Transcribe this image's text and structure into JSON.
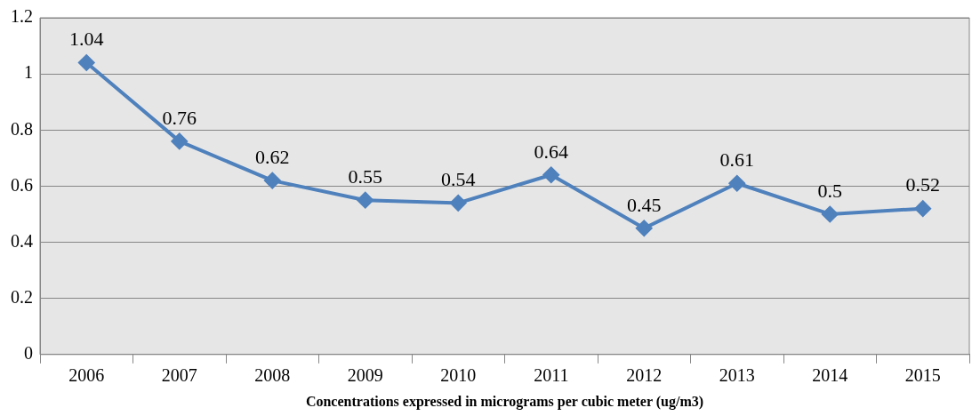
{
  "chart_data": {
    "type": "line",
    "xlabel": "Concentrations expressed in micrograms per cubic meter (ug/m3)",
    "categories": [
      "2006",
      "2007",
      "2008",
      "2009",
      "2010",
      "2011",
      "2012",
      "2013",
      "2014",
      "2015"
    ],
    "series": [
      {
        "color": "#4f81bd",
        "values": [
          1.04,
          0.76,
          0.62,
          0.55,
          0.54,
          0.64,
          0.45,
          0.61,
          0.5,
          0.52
        ]
      }
    ],
    "ylim": [
      0,
      1.2
    ],
    "yticks": [
      0,
      0.2,
      0.4,
      0.6,
      0.8,
      1,
      1.2
    ],
    "grid": "y",
    "legend": false,
    "marker": "diamond",
    "line_style": "solid",
    "data_labels": true
  }
}
